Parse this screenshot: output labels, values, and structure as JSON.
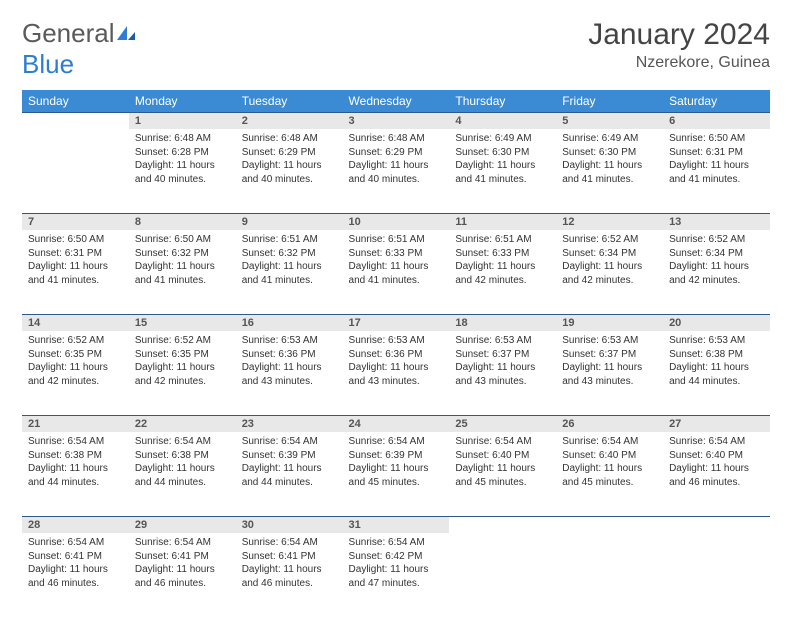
{
  "brand": {
    "name_part1": "General",
    "name_part2": "Blue"
  },
  "title": "January 2024",
  "location": "Nzerekore, Guinea",
  "colors": {
    "header_bg": "#3b8bd4",
    "header_text": "#ffffff",
    "daynum_bg": "#e8e8e8",
    "rule": "#2d5a8a",
    "brand_blue": "#2d7dd2",
    "text": "#333333"
  },
  "weekdays": [
    "Sunday",
    "Monday",
    "Tuesday",
    "Wednesday",
    "Thursday",
    "Friday",
    "Saturday"
  ],
  "weeks": [
    [
      null,
      {
        "n": "1",
        "sr": "Sunrise: 6:48 AM",
        "ss": "Sunset: 6:28 PM",
        "d1": "Daylight: 11 hours",
        "d2": "and 40 minutes."
      },
      {
        "n": "2",
        "sr": "Sunrise: 6:48 AM",
        "ss": "Sunset: 6:29 PM",
        "d1": "Daylight: 11 hours",
        "d2": "and 40 minutes."
      },
      {
        "n": "3",
        "sr": "Sunrise: 6:48 AM",
        "ss": "Sunset: 6:29 PM",
        "d1": "Daylight: 11 hours",
        "d2": "and 40 minutes."
      },
      {
        "n": "4",
        "sr": "Sunrise: 6:49 AM",
        "ss": "Sunset: 6:30 PM",
        "d1": "Daylight: 11 hours",
        "d2": "and 41 minutes."
      },
      {
        "n": "5",
        "sr": "Sunrise: 6:49 AM",
        "ss": "Sunset: 6:30 PM",
        "d1": "Daylight: 11 hours",
        "d2": "and 41 minutes."
      },
      {
        "n": "6",
        "sr": "Sunrise: 6:50 AM",
        "ss": "Sunset: 6:31 PM",
        "d1": "Daylight: 11 hours",
        "d2": "and 41 minutes."
      }
    ],
    [
      {
        "n": "7",
        "sr": "Sunrise: 6:50 AM",
        "ss": "Sunset: 6:31 PM",
        "d1": "Daylight: 11 hours",
        "d2": "and 41 minutes."
      },
      {
        "n": "8",
        "sr": "Sunrise: 6:50 AM",
        "ss": "Sunset: 6:32 PM",
        "d1": "Daylight: 11 hours",
        "d2": "and 41 minutes."
      },
      {
        "n": "9",
        "sr": "Sunrise: 6:51 AM",
        "ss": "Sunset: 6:32 PM",
        "d1": "Daylight: 11 hours",
        "d2": "and 41 minutes."
      },
      {
        "n": "10",
        "sr": "Sunrise: 6:51 AM",
        "ss": "Sunset: 6:33 PM",
        "d1": "Daylight: 11 hours",
        "d2": "and 41 minutes."
      },
      {
        "n": "11",
        "sr": "Sunrise: 6:51 AM",
        "ss": "Sunset: 6:33 PM",
        "d1": "Daylight: 11 hours",
        "d2": "and 42 minutes."
      },
      {
        "n": "12",
        "sr": "Sunrise: 6:52 AM",
        "ss": "Sunset: 6:34 PM",
        "d1": "Daylight: 11 hours",
        "d2": "and 42 minutes."
      },
      {
        "n": "13",
        "sr": "Sunrise: 6:52 AM",
        "ss": "Sunset: 6:34 PM",
        "d1": "Daylight: 11 hours",
        "d2": "and 42 minutes."
      }
    ],
    [
      {
        "n": "14",
        "sr": "Sunrise: 6:52 AM",
        "ss": "Sunset: 6:35 PM",
        "d1": "Daylight: 11 hours",
        "d2": "and 42 minutes."
      },
      {
        "n": "15",
        "sr": "Sunrise: 6:52 AM",
        "ss": "Sunset: 6:35 PM",
        "d1": "Daylight: 11 hours",
        "d2": "and 42 minutes."
      },
      {
        "n": "16",
        "sr": "Sunrise: 6:53 AM",
        "ss": "Sunset: 6:36 PM",
        "d1": "Daylight: 11 hours",
        "d2": "and 43 minutes."
      },
      {
        "n": "17",
        "sr": "Sunrise: 6:53 AM",
        "ss": "Sunset: 6:36 PM",
        "d1": "Daylight: 11 hours",
        "d2": "and 43 minutes."
      },
      {
        "n": "18",
        "sr": "Sunrise: 6:53 AM",
        "ss": "Sunset: 6:37 PM",
        "d1": "Daylight: 11 hours",
        "d2": "and 43 minutes."
      },
      {
        "n": "19",
        "sr": "Sunrise: 6:53 AM",
        "ss": "Sunset: 6:37 PM",
        "d1": "Daylight: 11 hours",
        "d2": "and 43 minutes."
      },
      {
        "n": "20",
        "sr": "Sunrise: 6:53 AM",
        "ss": "Sunset: 6:38 PM",
        "d1": "Daylight: 11 hours",
        "d2": "and 44 minutes."
      }
    ],
    [
      {
        "n": "21",
        "sr": "Sunrise: 6:54 AM",
        "ss": "Sunset: 6:38 PM",
        "d1": "Daylight: 11 hours",
        "d2": "and 44 minutes."
      },
      {
        "n": "22",
        "sr": "Sunrise: 6:54 AM",
        "ss": "Sunset: 6:38 PM",
        "d1": "Daylight: 11 hours",
        "d2": "and 44 minutes."
      },
      {
        "n": "23",
        "sr": "Sunrise: 6:54 AM",
        "ss": "Sunset: 6:39 PM",
        "d1": "Daylight: 11 hours",
        "d2": "and 44 minutes."
      },
      {
        "n": "24",
        "sr": "Sunrise: 6:54 AM",
        "ss": "Sunset: 6:39 PM",
        "d1": "Daylight: 11 hours",
        "d2": "and 45 minutes."
      },
      {
        "n": "25",
        "sr": "Sunrise: 6:54 AM",
        "ss": "Sunset: 6:40 PM",
        "d1": "Daylight: 11 hours",
        "d2": "and 45 minutes."
      },
      {
        "n": "26",
        "sr": "Sunrise: 6:54 AM",
        "ss": "Sunset: 6:40 PM",
        "d1": "Daylight: 11 hours",
        "d2": "and 45 minutes."
      },
      {
        "n": "27",
        "sr": "Sunrise: 6:54 AM",
        "ss": "Sunset: 6:40 PM",
        "d1": "Daylight: 11 hours",
        "d2": "and 46 minutes."
      }
    ],
    [
      {
        "n": "28",
        "sr": "Sunrise: 6:54 AM",
        "ss": "Sunset: 6:41 PM",
        "d1": "Daylight: 11 hours",
        "d2": "and 46 minutes."
      },
      {
        "n": "29",
        "sr": "Sunrise: 6:54 AM",
        "ss": "Sunset: 6:41 PM",
        "d1": "Daylight: 11 hours",
        "d2": "and 46 minutes."
      },
      {
        "n": "30",
        "sr": "Sunrise: 6:54 AM",
        "ss": "Sunset: 6:41 PM",
        "d1": "Daylight: 11 hours",
        "d2": "and 46 minutes."
      },
      {
        "n": "31",
        "sr": "Sunrise: 6:54 AM",
        "ss": "Sunset: 6:42 PM",
        "d1": "Daylight: 11 hours",
        "d2": "and 47 minutes."
      },
      null,
      null,
      null
    ]
  ]
}
